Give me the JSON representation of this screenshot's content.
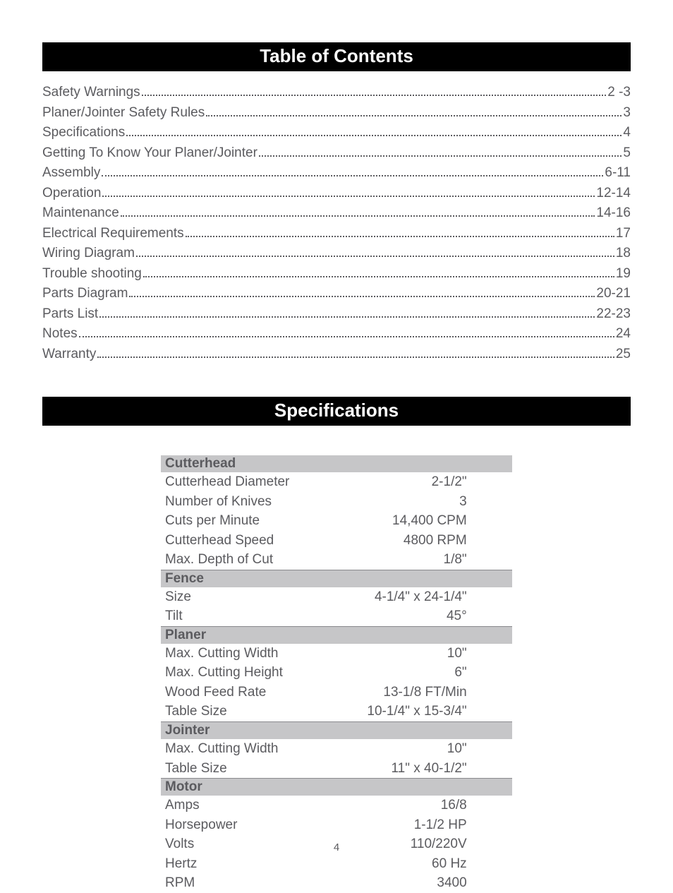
{
  "ui": {
    "page_number": "4",
    "text_color": "#5b5b5f",
    "header_bg": "#000000",
    "header_fg": "#ffffff",
    "spec_header_bg": "#c6c6c8",
    "underline_color": "#8a8a8e"
  },
  "sections": {
    "toc_title": "Table of Contents",
    "spec_title": "Specifications"
  },
  "toc": [
    {
      "label": "Safety Warnings",
      "page": "2 -3"
    },
    {
      "label": "Planer/Jointer Safety Rules ",
      "page": "3"
    },
    {
      "label": "Specifications ",
      "page": "4"
    },
    {
      "label": "Getting To Know Your Planer/Jointer ",
      "page": "5"
    },
    {
      "label": "Assembly ",
      "page": "6-11"
    },
    {
      "label": "Operation",
      "page": "12-14"
    },
    {
      "label": "Maintenance",
      "page": "14-16"
    },
    {
      "label": "Electrical Requirements",
      "page": "17"
    },
    {
      "label": "Wiring Diagram",
      "page": "18"
    },
    {
      "label": "Trouble shooting",
      "page": "19"
    },
    {
      "label": "Parts Diagram",
      "page": "20-21"
    },
    {
      "label": "Parts List",
      "page": "22-23"
    },
    {
      "label": "Notes",
      "page": "24"
    },
    {
      "label": "Warranty",
      "page": "25"
    }
  ],
  "specs": [
    {
      "type": "header",
      "label": "Cutterhead"
    },
    {
      "type": "row",
      "label": "Cutterhead Diameter",
      "value": "2-1/2\""
    },
    {
      "type": "row",
      "label": "Number of Knives",
      "value": "3"
    },
    {
      "type": "row",
      "label": "Cuts per Minute",
      "value": "14,400 CPM"
    },
    {
      "type": "row",
      "label": "Cutterhead Speed",
      "value": "4800 RPM"
    },
    {
      "type": "row",
      "label": "Max. Depth of Cut",
      "value": "1/8\"",
      "underline": true
    },
    {
      "type": "header",
      "label": "Fence"
    },
    {
      "type": "row",
      "label": "Size",
      "value": "4-1/4\" x 24-1/4\""
    },
    {
      "type": "row",
      "label": "Tilt",
      "value": "45°",
      "underline": true
    },
    {
      "type": "header",
      "label": "Planer"
    },
    {
      "type": "row",
      "label": "Max. Cutting Width",
      "value": "10\""
    },
    {
      "type": "row",
      "label": "Max. Cutting Height",
      "value": "6\""
    },
    {
      "type": "row",
      "label": "Wood Feed Rate",
      "value": "13-1/8 FT/Min"
    },
    {
      "type": "row",
      "label": "Table Size",
      "value": "10-1/4\" x 15-3/4\"",
      "underline": true
    },
    {
      "type": "header",
      "label": "Jointer"
    },
    {
      "type": "row",
      "label": "Max. Cutting Width",
      "value": "10\""
    },
    {
      "type": "row",
      "label": "Table Size",
      "value": "11\" x 40-1/2\"",
      "underline": true
    },
    {
      "type": "header",
      "label": "Motor"
    },
    {
      "type": "row",
      "label": "Amps",
      "value": "16/8"
    },
    {
      "type": "row",
      "label": "Horsepower",
      "value": "1-1/2 HP"
    },
    {
      "type": "row",
      "label": "Volts",
      "value": "110/220V"
    },
    {
      "type": "row",
      "label": "Hertz",
      "value": "60 Hz"
    },
    {
      "type": "row",
      "label": "RPM",
      "value": "3400"
    }
  ]
}
